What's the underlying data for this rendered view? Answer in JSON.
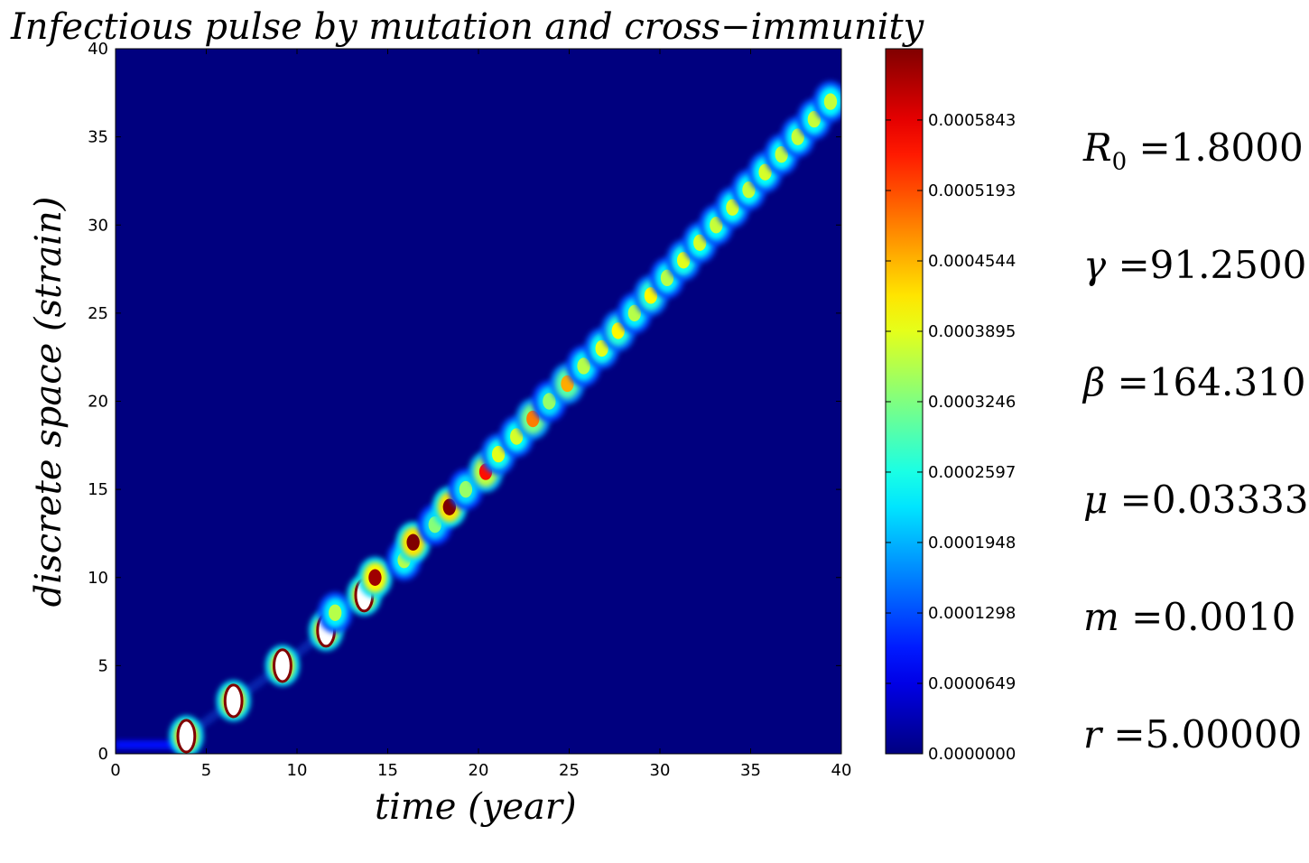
{
  "chart_data": {
    "type": "heatmap",
    "title": "Infectious pulse by mutation and cross−immunity",
    "xlabel": "time (year)",
    "ylabel": "discrete space (strain)",
    "xlim": [
      0,
      40
    ],
    "ylim": [
      0,
      40
    ],
    "x_ticks": [
      "0",
      "5",
      "10",
      "15",
      "20",
      "25",
      "30",
      "35",
      "40"
    ],
    "y_ticks": [
      "0",
      "5",
      "10",
      "15",
      "20",
      "25",
      "30",
      "35",
      "40"
    ],
    "colormap": "jet",
    "background_color": "#00007f",
    "colorbar": {
      "vmin": 0.0,
      "vmax": 0.00065,
      "tick_labels": [
        "0.0000000",
        "0.0000649",
        "0.0001298",
        "0.0001948",
        "0.0002597",
        "0.0003246",
        "0.0003895",
        "0.0004544",
        "0.0005193",
        "0.0005843"
      ]
    },
    "pulses": [
      {
        "t": 3.9,
        "s": 1,
        "peak": "saturated"
      },
      {
        "t": 6.5,
        "s": 3,
        "peak": "saturated"
      },
      {
        "t": 9.2,
        "s": 5,
        "peak": "saturated"
      },
      {
        "t": 11.6,
        "s": 7,
        "peak": "saturated"
      },
      {
        "t": 12.1,
        "s": 8,
        "peak": 0.00036
      },
      {
        "t": 13.7,
        "s": 9,
        "peak": "saturated"
      },
      {
        "t": 14.3,
        "s": 10,
        "peak": 0.00063
      },
      {
        "t": 15.9,
        "s": 11,
        "peak": 0.00036
      },
      {
        "t": 16.4,
        "s": 12,
        "peak": 0.00065
      },
      {
        "t": 17.6,
        "s": 13,
        "peak": 0.00033
      },
      {
        "t": 18.4,
        "s": 14,
        "peak": 0.00065
      },
      {
        "t": 19.3,
        "s": 15,
        "peak": 0.00034
      },
      {
        "t": 20.4,
        "s": 16,
        "peak": 0.00056
      },
      {
        "t": 21.1,
        "s": 17,
        "peak": 0.00039
      },
      {
        "t": 22.1,
        "s": 18,
        "peak": 0.00038
      },
      {
        "t": 23.0,
        "s": 19,
        "peak": 0.00049
      },
      {
        "t": 23.9,
        "s": 20,
        "peak": 0.00034
      },
      {
        "t": 24.9,
        "s": 21,
        "peak": 0.00046
      },
      {
        "t": 25.8,
        "s": 22,
        "peak": 0.00036
      },
      {
        "t": 26.8,
        "s": 23,
        "peak": 0.00039
      },
      {
        "t": 27.7,
        "s": 24,
        "peak": 0.00041
      },
      {
        "t": 28.6,
        "s": 25,
        "peak": 0.00036
      },
      {
        "t": 29.5,
        "s": 26,
        "peak": 0.00041
      },
      {
        "t": 30.4,
        "s": 27,
        "peak": 0.00036
      },
      {
        "t": 31.3,
        "s": 28,
        "peak": 0.00039
      },
      {
        "t": 32.2,
        "s": 29,
        "peak": 0.00038
      },
      {
        "t": 33.1,
        "s": 30,
        "peak": 0.00037
      },
      {
        "t": 34.0,
        "s": 31,
        "peak": 0.00038
      },
      {
        "t": 34.9,
        "s": 32,
        "peak": 0.00037
      },
      {
        "t": 35.8,
        "s": 33,
        "peak": 0.00038
      },
      {
        "t": 36.7,
        "s": 34,
        "peak": 0.00037
      },
      {
        "t": 37.6,
        "s": 35,
        "peak": 0.00037
      },
      {
        "t": 38.5,
        "s": 36,
        "peak": 0.00037
      },
      {
        "t": 39.4,
        "s": 37,
        "peak": 0.00037
      }
    ],
    "baseline_band": {
      "t_start": 0,
      "t_end": 3.9,
      "s": 0.5,
      "value": 9e-05
    }
  },
  "parameters": [
    {
      "symbol": "R",
      "sub": "0",
      "value": "=1.8000"
    },
    {
      "symbol": "γ",
      "sub": "",
      "value": "=91.2500"
    },
    {
      "symbol": "β",
      "sub": "",
      "value": "=164.310"
    },
    {
      "symbol": "μ",
      "sub": "",
      "value": "=0.03333"
    },
    {
      "symbol": "m",
      "sub": "",
      "value": "=0.0010"
    },
    {
      "symbol": "r",
      "sub": "",
      "value": "=5.00000"
    }
  ]
}
